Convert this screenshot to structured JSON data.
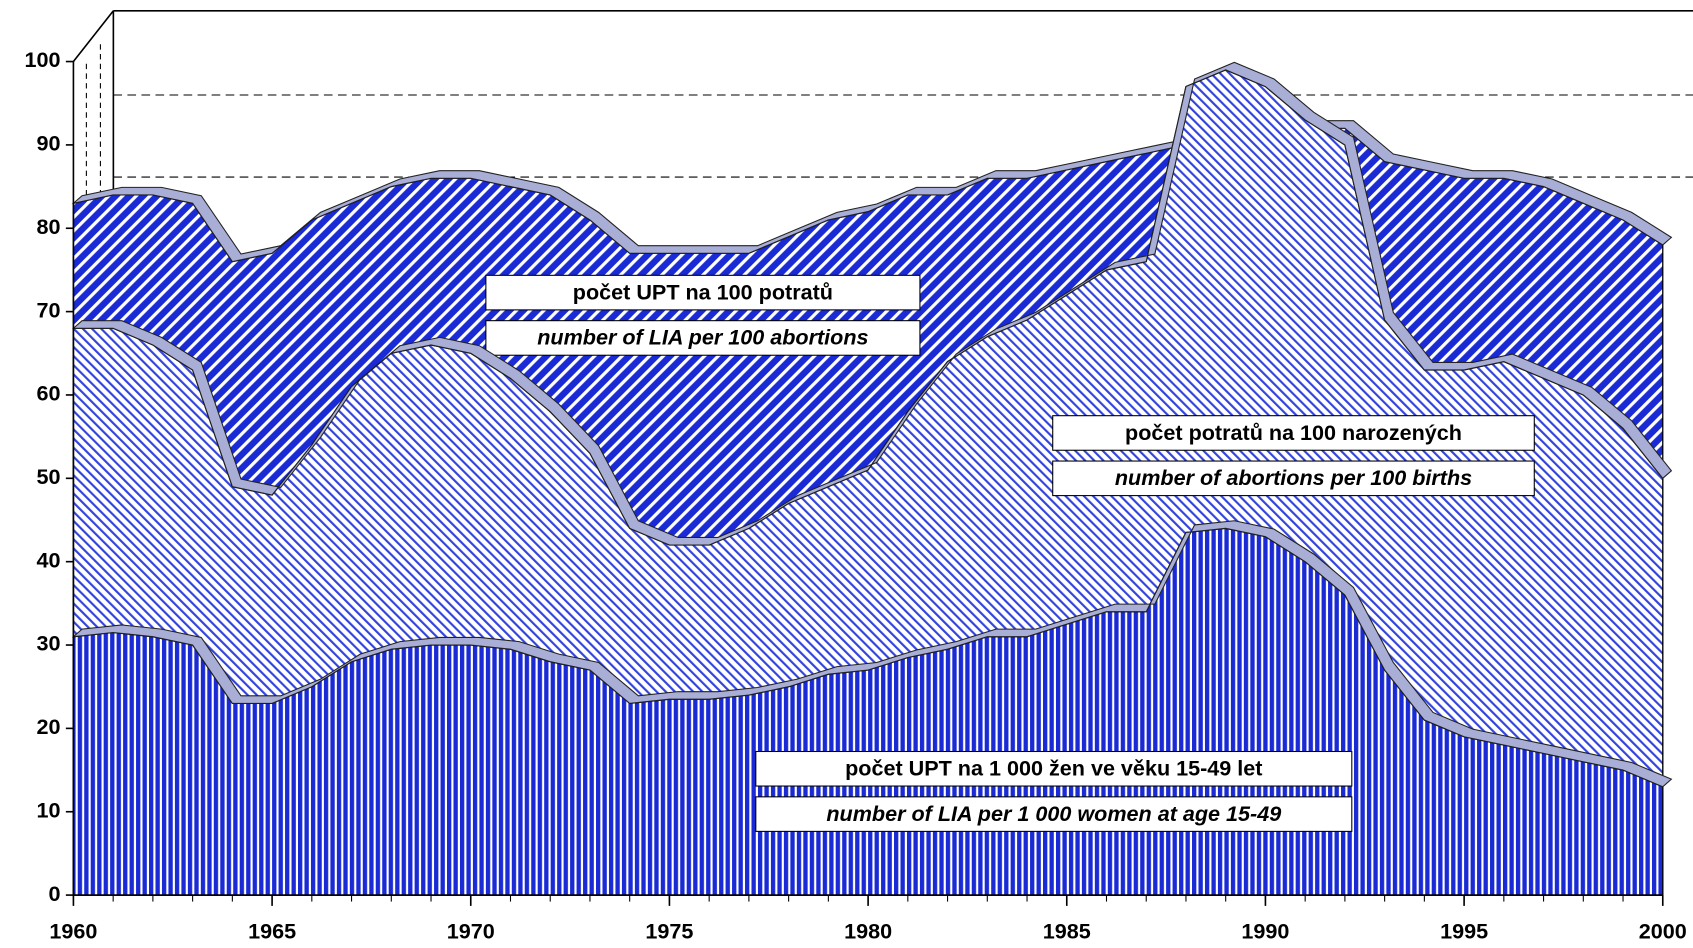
{
  "chart_data": {
    "type": "area",
    "x": [
      1960,
      1961,
      1962,
      1963,
      1964,
      1965,
      1966,
      1967,
      1968,
      1969,
      1970,
      1971,
      1972,
      1973,
      1974,
      1975,
      1976,
      1977,
      1978,
      1979,
      1980,
      1981,
      1982,
      1983,
      1984,
      1985,
      1986,
      1987,
      1988,
      1989,
      1990,
      1991,
      1992,
      1993,
      1994,
      1995,
      1996,
      1997,
      1998,
      1999,
      2000
    ],
    "xlim": [
      1960,
      2000
    ],
    "xticks": [
      1960,
      1965,
      1970,
      1975,
      1980,
      1985,
      1990,
      1995,
      2000
    ],
    "ylim": [
      0,
      100
    ],
    "yticks": [
      0,
      10,
      20,
      30,
      40,
      50,
      60,
      70,
      80,
      90,
      100
    ],
    "series": [
      {
        "name": "počet UPT na 100 potratů",
        "name_en": "number of LIA per 100 abortions",
        "color": "#1a2bd6",
        "values": [
          83,
          84,
          84,
          83,
          76,
          77,
          81,
          83,
          85,
          86,
          86,
          85,
          84,
          81,
          77,
          77,
          77,
          77,
          79,
          81,
          82,
          84,
          84,
          86,
          86,
          87,
          88,
          89,
          90,
          91,
          92,
          92,
          92,
          88,
          87,
          86,
          86,
          85,
          83,
          81,
          78
        ]
      },
      {
        "name": "počet potratů na 100 narozených",
        "name_en": "number of abortions per 100 births",
        "color": "#3344dd",
        "values": [
          68,
          68,
          66,
          63,
          49,
          48,
          54,
          61,
          65,
          66,
          65,
          62,
          58,
          53,
          44,
          42,
          42,
          44,
          47,
          49,
          51,
          58,
          64,
          67,
          69,
          72,
          75,
          76,
          97,
          99,
          97,
          93,
          90,
          69,
          63,
          63,
          64,
          62,
          60,
          56,
          50
        ]
      },
      {
        "name": "počet UPT na 1 000 žen ve věku 15-49 let",
        "name_en": "number of LIA per 1 000 women at age 15-49",
        "color": "#1a2bd6",
        "values": [
          31,
          31.5,
          31,
          30,
          23,
          23,
          25,
          28,
          29.5,
          30,
          30,
          29.5,
          28,
          27,
          23,
          23.5,
          23.5,
          24,
          25,
          26.5,
          27,
          28.5,
          29.5,
          31,
          31,
          32.5,
          34,
          34,
          43.5,
          44,
          43,
          40,
          36,
          27,
          21,
          19,
          18,
          17,
          16,
          15,
          13
        ]
      }
    ]
  }
}
